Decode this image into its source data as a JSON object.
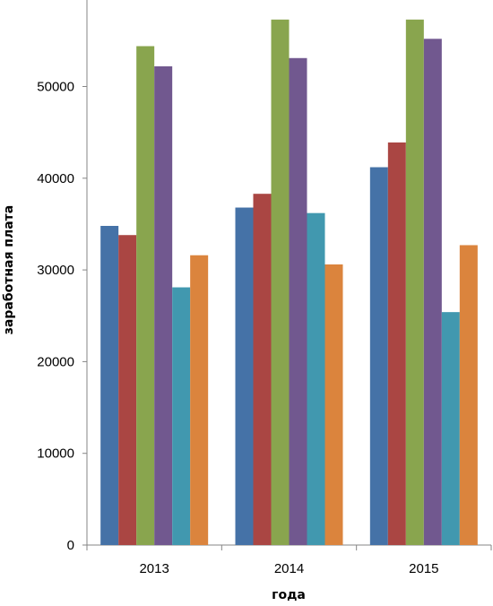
{
  "chart_data": {
    "type": "bar",
    "title": "",
    "xlabel": "года",
    "ylabel": "заработная плата",
    "categories": [
      "2013",
      "2014",
      "2015"
    ],
    "ylim": [
      0,
      58000
    ],
    "yticks": [
      0,
      10000,
      20000,
      30000,
      40000,
      50000
    ],
    "grid": false,
    "legend": "none",
    "series": [
      {
        "color": "#4572A7",
        "values": [
          34800,
          36800,
          41200
        ]
      },
      {
        "color": "#AA4643",
        "values": [
          33800,
          38300,
          43900
        ]
      },
      {
        "color": "#89A54E",
        "values": [
          54400,
          57300,
          57300
        ]
      },
      {
        "color": "#71588F",
        "values": [
          52200,
          53100,
          55200
        ]
      },
      {
        "color": "#4198AF",
        "values": [
          28100,
          36200,
          25400
        ]
      },
      {
        "color": "#DB843D",
        "values": [
          31600,
          30600,
          32700
        ]
      }
    ]
  }
}
